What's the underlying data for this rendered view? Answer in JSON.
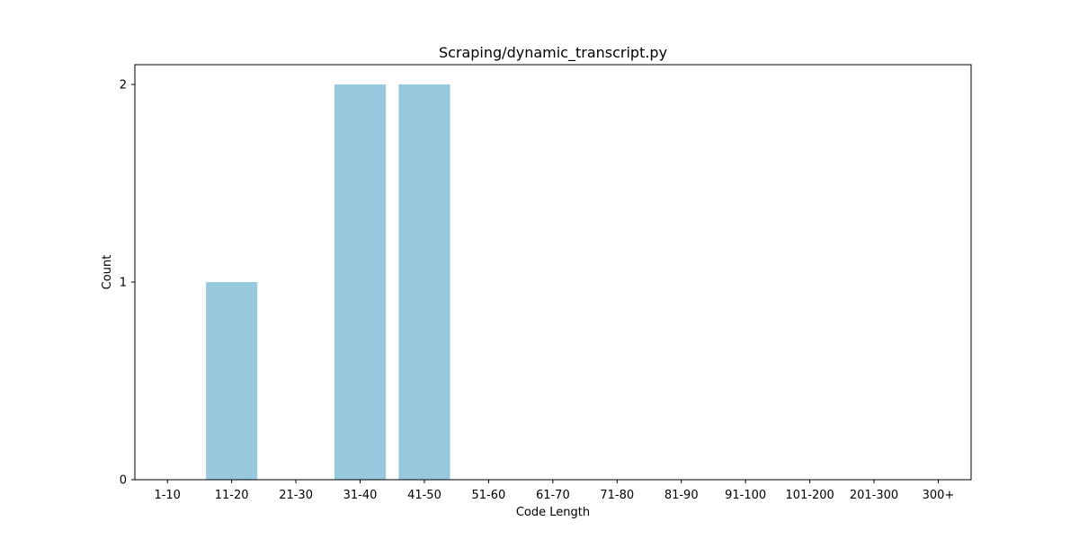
{
  "chart_data": {
    "type": "bar",
    "title": "Scraping/dynamic_transcript.py",
    "xlabel": "Code Length",
    "ylabel": "Count",
    "categories": [
      "1-10",
      "11-20",
      "21-30",
      "31-40",
      "41-50",
      "51-60",
      "61-70",
      "71-80",
      "81-90",
      "91-100",
      "101-200",
      "201-300",
      "300+"
    ],
    "values": [
      0,
      1,
      0,
      2,
      2,
      0,
      0,
      0,
      0,
      0,
      0,
      0,
      0
    ],
    "ylim": [
      0,
      2.1
    ],
    "yticks": [
      0,
      1,
      2
    ],
    "grid": false,
    "legend": "none",
    "bar_color": "#96c9dd",
    "axis_color": "#000000"
  }
}
